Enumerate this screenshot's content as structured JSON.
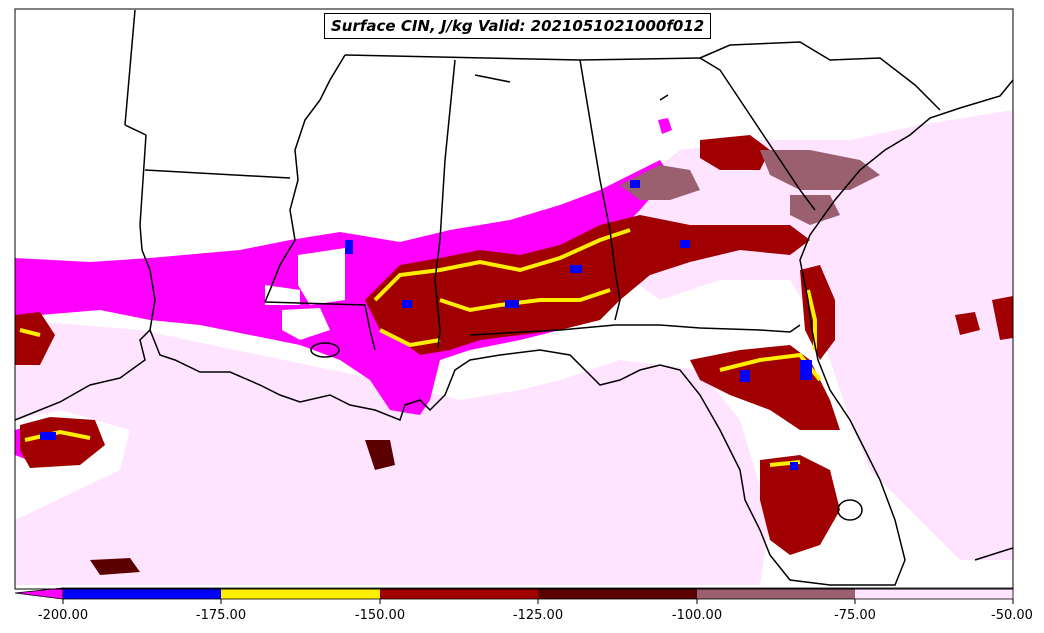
{
  "title": "Surface CIN, J/kg Valid: 2021051021000f012",
  "colorbar": {
    "ticks": [
      "-200.00",
      "-175.00",
      "-150.00",
      "-125.00",
      "-100.00",
      "-75.00",
      "-50.00"
    ],
    "colors": {
      "lt_-200": "#ff00ff",
      "-200_-175": "#0000ff",
      "-175_-150": "#ffee00",
      "-150_-125": "#a00000",
      "-125_-100": "#5a0000",
      "-100_-75": "#9a6070",
      "-75_-50": "#ffe4ff"
    }
  }
}
